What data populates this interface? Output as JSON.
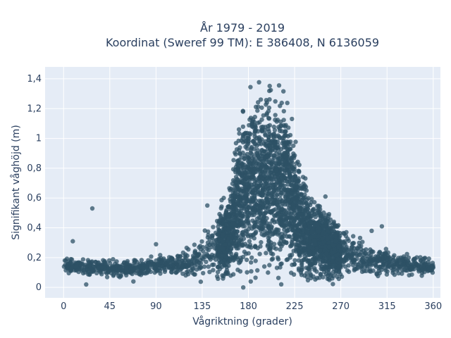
{
  "chart_data": {
    "type": "scatter",
    "title_line1": "År 1979 - 2019",
    "title_line2": "Koordinat (Sweref 99 TM): E 386408, N 6136059",
    "xlabel": "Vågriktning (grader)",
    "ylabel": "Signifikant våghöjd (m)",
    "xlim": [
      -18,
      367
    ],
    "ylim": [
      -0.07,
      1.48
    ],
    "x_ticks": [
      0,
      45,
      90,
      135,
      180,
      225,
      270,
      315,
      360
    ],
    "y_ticks": [
      0,
      0.2,
      0.4,
      0.6,
      0.8,
      1,
      1.2,
      1.4
    ],
    "y_tick_labels": [
      "0",
      "0,2",
      "0,4",
      "0,6",
      "0,8",
      "1",
      "1,2",
      "1,4"
    ],
    "grid": true,
    "marker_color": "#2e5266",
    "background_color": "#e5ecf6",
    "envelope": {
      "x": [
        0,
        20,
        40,
        60,
        80,
        100,
        120,
        130,
        140,
        150,
        160,
        165,
        170,
        175,
        180,
        190,
        200,
        210,
        220,
        225,
        230,
        235,
        240,
        250,
        260,
        270,
        280,
        300,
        320,
        340,
        360
      ],
      "upper": [
        0.21,
        0.2,
        0.2,
        0.2,
        0.21,
        0.24,
        0.27,
        0.32,
        0.45,
        0.57,
        0.7,
        0.85,
        1.15,
        1.32,
        1.36,
        1.4,
        1.42,
        1.41,
        1.3,
        1.12,
        0.9,
        0.78,
        0.68,
        0.6,
        0.52,
        0.45,
        0.38,
        0.3,
        0.26,
        0.23,
        0.2
      ],
      "lower": [
        0.08,
        0.06,
        0.06,
        0.06,
        0.07,
        0.07,
        0.05,
        0.03,
        0.01,
        0.0,
        0.0,
        0.0,
        0.0,
        0.0,
        0.0,
        0.0,
        0.0,
        0.0,
        0.0,
        0.0,
        0.0,
        0.0,
        0.0,
        0.0,
        0.01,
        0.02,
        0.04,
        0.05,
        0.06,
        0.07,
        0.08
      ]
    },
    "outliers": [
      {
        "x": 28,
        "y": 0.53
      },
      {
        "x": 9,
        "y": 0.31
      },
      {
        "x": 22,
        "y": 0.02
      },
      {
        "x": 68,
        "y": 0.04
      },
      {
        "x": 90,
        "y": 0.29
      },
      {
        "x": 140,
        "y": 0.55
      },
      {
        "x": 175,
        "y": 0.0
      },
      {
        "x": 255,
        "y": 0.61
      },
      {
        "x": 300,
        "y": 0.38
      },
      {
        "x": 310,
        "y": 0.41
      }
    ],
    "n_points": 3800,
    "seed": 42
  }
}
